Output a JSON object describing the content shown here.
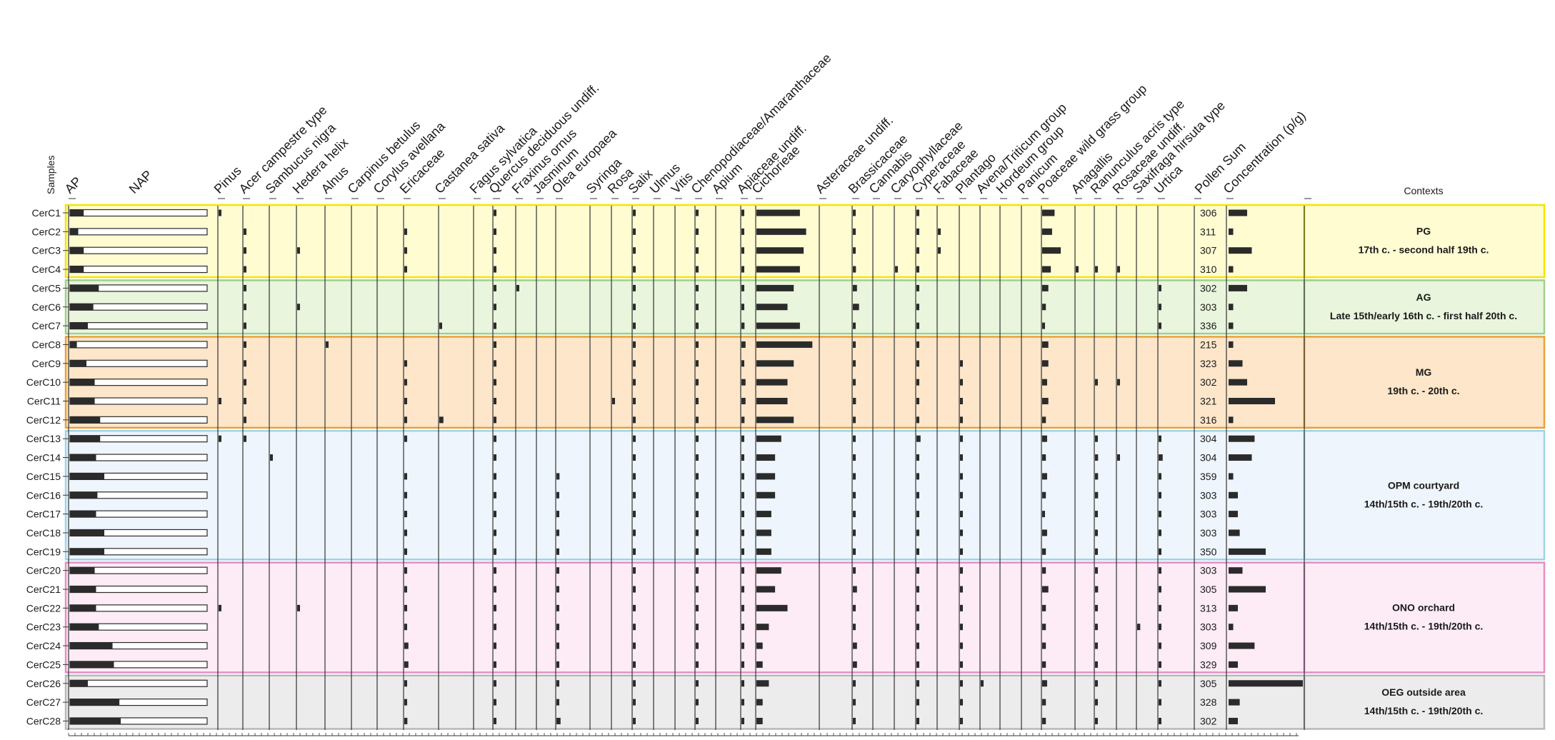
{
  "chart_data": {
    "type": "bar",
    "title": "",
    "samples_header": "Samples",
    "pollen_sum_header": "Pollen Sum",
    "concentration_header": "Concentration (p/g)",
    "contexts_header": "Contexts",
    "ap_label": "AP",
    "nap_label": "NAP",
    "samples": [
      "CerC1",
      "CerC2",
      "CerC3",
      "CerC4",
      "CerC5",
      "CerC6",
      "CerC7",
      "CerC8",
      "CerC9",
      "CerC10",
      "CerC11",
      "CerC12",
      "CerC13",
      "CerC14",
      "CerC15",
      "CerC16",
      "CerC17",
      "CerC18",
      "CerC19",
      "CerC20",
      "CerC21",
      "CerC22",
      "CerC23",
      "CerC24",
      "CerC25",
      "CerC26",
      "CerC27",
      "CerC28"
    ],
    "ap_percent": [
      10,
      6,
      10,
      10,
      21,
      17,
      13,
      5,
      12,
      18,
      18,
      22,
      22,
      19,
      25,
      20,
      19,
      25,
      25,
      18,
      19,
      19,
      21,
      31,
      32,
      13,
      36,
      37
    ],
    "pollen_sum": [
      306,
      311,
      307,
      310,
      302,
      303,
      336,
      215,
      323,
      302,
      321,
      316,
      304,
      304,
      359,
      303,
      303,
      303,
      350,
      303,
      305,
      313,
      303,
      309,
      329,
      305,
      328,
      302
    ],
    "concentration_rel": [
      0.2,
      0.05,
      0.25,
      0.05,
      0.2,
      0.05,
      0.05,
      0.05,
      0.15,
      0.2,
      0.5,
      0.05,
      0.28,
      0.25,
      0.05,
      0.1,
      0.1,
      0.12,
      0.4,
      0.15,
      0.4,
      0.1,
      0.05,
      0.28,
      0.1,
      0.8,
      0.12,
      0.1
    ],
    "taxa": [
      "Pinus",
      "Acer campestre type",
      "Sambucus nigra",
      "Hedera helix",
      "Alnus",
      "Carpinus betulus",
      "Corylus avellana",
      "Ericaceae",
      "Castanea sativa",
      "Fagus sylvatica",
      "Quercus deciduous undiff.",
      "Fraxinus ornus",
      "Jasminum",
      "Olea europaea",
      "Syringa",
      "Rosa",
      "Salix",
      "Ulmus",
      "Vitis",
      "Chenopodiaceae/Amaranthaceae",
      "Apium",
      "Apiaceae undiff.",
      "Cichorieae",
      "Asteraceae undiff.",
      "Brassicaceae",
      "Cannabis",
      "Caryophyllaceae",
      "Cyperaceae",
      "Fabaceae",
      "Plantago",
      "Avena/Triticum group",
      "Hordeum group",
      "Panicum",
      "Poaceae wild grass group",
      "Anagallis",
      "Ranunculus acris type",
      "Rosaceae undiff.",
      "Saxifraga hirsuta type",
      "Urtica"
    ],
    "taxa_percent": [
      [
        0.5,
        0,
        0,
        0,
        0,
        0,
        0,
        0,
        0,
        0,
        0.5,
        0,
        0,
        0,
        0,
        0,
        0.5,
        0,
        0,
        0.5,
        0,
        0.5,
        35,
        0,
        1,
        0,
        0,
        1,
        0,
        0,
        0,
        0,
        0,
        10,
        0,
        0,
        0,
        0,
        0
      ],
      [
        0,
        0.5,
        0,
        0,
        0,
        0,
        0,
        0.5,
        0,
        0,
        0.5,
        0,
        0,
        0,
        0,
        0,
        0.5,
        0,
        0,
        0.5,
        0,
        0.5,
        40,
        0,
        1,
        0,
        0,
        1,
        0.5,
        0,
        0,
        0,
        0,
        8,
        0,
        0,
        0,
        0,
        0
      ],
      [
        0,
        0.5,
        0,
        1,
        0,
        0,
        0,
        0.5,
        0,
        0,
        0.5,
        0,
        0,
        0,
        0,
        0,
        0.5,
        0,
        0,
        0.5,
        0,
        0.5,
        38,
        0,
        0.5,
        0,
        0,
        1,
        0.5,
        0,
        0,
        0,
        0,
        15,
        0,
        0,
        0,
        0,
        0
      ],
      [
        0,
        0.5,
        0,
        0,
        0,
        0,
        0,
        0.5,
        0,
        0,
        0.5,
        0,
        0,
        0,
        0,
        0,
        0.5,
        0,
        0,
        0.5,
        0,
        0.5,
        35,
        0,
        1.5,
        0,
        0.5,
        1,
        0,
        0,
        0,
        0,
        0,
        7,
        0.5,
        0.5,
        0.5,
        0,
        0
      ],
      [
        0,
        0.5,
        0,
        0,
        0,
        0,
        0,
        0,
        0,
        0,
        1,
        0.5,
        0,
        0,
        0,
        0,
        0.5,
        0,
        0,
        0.5,
        0,
        1,
        30,
        0,
        2,
        0,
        0,
        1,
        0,
        0,
        0,
        0,
        0,
        5,
        0,
        0,
        0,
        0,
        0.5
      ],
      [
        0,
        0.5,
        0,
        1,
        0,
        0,
        0,
        0,
        0,
        0,
        0.5,
        0,
        0,
        0,
        0,
        0,
        0.5,
        0,
        0,
        0.5,
        0,
        0.5,
        25,
        0,
        3,
        0,
        0,
        1,
        0,
        0,
        0,
        0,
        0,
        3,
        0,
        0,
        0,
        0,
        1
      ],
      [
        0,
        0.5,
        0,
        0,
        0,
        0,
        0,
        0,
        0.5,
        0,
        0.5,
        0,
        0,
        0,
        0,
        0,
        0.5,
        0,
        0,
        0.5,
        0,
        1.5,
        35,
        0,
        0.5,
        0,
        0,
        1,
        0,
        0,
        0,
        0,
        0,
        2,
        0,
        0,
        0,
        0,
        0.5
      ],
      [
        0,
        0.5,
        0,
        0,
        0.5,
        0,
        0,
        0,
        0,
        0,
        0.5,
        0,
        0,
        0,
        0,
        0,
        0.5,
        0,
        0,
        0.5,
        0,
        2,
        45,
        0,
        1,
        0,
        0,
        1,
        0,
        0,
        0,
        0,
        0,
        5,
        0,
        0,
        0,
        0,
        0
      ],
      [
        0,
        0.5,
        0,
        0,
        0,
        0,
        0,
        0.5,
        0,
        0,
        0.5,
        0,
        0,
        0,
        0,
        0,
        0.5,
        0,
        0,
        0.5,
        0,
        1,
        30,
        0,
        1,
        0,
        0,
        1,
        0,
        1,
        0,
        0,
        0,
        5,
        0,
        0,
        0,
        0,
        0
      ],
      [
        0,
        0.5,
        0,
        0,
        0,
        0,
        0,
        0.5,
        0,
        0,
        0.5,
        0,
        0,
        0,
        0,
        0,
        0.5,
        0,
        0,
        0.5,
        0,
        2,
        25,
        0,
        1,
        0,
        0,
        1,
        0,
        0.5,
        0,
        0,
        0,
        4,
        0,
        0.5,
        0.5,
        0,
        0
      ],
      [
        1,
        0.5,
        0,
        0,
        0,
        0,
        0,
        0.5,
        0,
        0,
        0.5,
        0,
        0,
        0,
        0,
        0.5,
        0.5,
        0,
        0,
        0.5,
        0,
        2,
        25,
        0,
        1.5,
        0,
        0,
        1,
        0,
        1,
        0,
        0,
        0,
        5,
        0,
        0,
        0,
        0,
        0
      ],
      [
        0,
        0.5,
        0,
        0,
        0,
        0,
        0,
        0.5,
        2,
        0,
        0.5,
        0,
        0,
        0,
        0,
        0,
        0.5,
        0,
        0,
        0.5,
        0,
        1.5,
        30,
        0,
        1,
        0,
        0,
        1,
        0,
        0.5,
        0,
        0,
        0,
        3,
        0,
        0,
        0,
        0,
        0
      ],
      [
        0.5,
        0.5,
        0,
        0,
        0,
        0,
        0,
        0.5,
        0,
        0,
        0.5,
        0,
        0,
        0,
        0,
        0,
        0.5,
        0,
        0,
        0.5,
        0,
        1,
        20,
        0,
        1,
        0,
        0,
        2,
        0,
        0.5,
        0,
        0,
        0,
        4,
        0,
        0.5,
        0,
        0,
        1
      ],
      [
        0,
        0,
        0.5,
        0,
        0,
        0,
        0,
        0,
        0,
        0,
        0.5,
        0,
        0,
        0,
        0,
        0,
        0.5,
        0,
        0,
        0.5,
        0,
        0.5,
        15,
        0,
        1,
        0,
        0,
        1,
        0,
        0.5,
        0,
        0,
        0,
        3,
        0,
        1.5,
        0.5,
        0,
        2
      ],
      [
        0,
        0,
        0,
        0,
        0,
        0,
        0,
        1,
        0,
        0,
        0.5,
        0,
        0,
        1.5,
        0,
        0,
        0.5,
        0,
        0,
        0.5,
        0,
        0.5,
        15,
        0,
        1,
        0,
        0,
        1,
        0,
        0.5,
        0,
        0,
        0,
        4,
        0,
        1.5,
        0,
        0,
        0.5
      ],
      [
        0,
        0,
        0,
        0,
        0,
        0,
        0,
        0.5,
        0,
        0,
        0.5,
        0,
        0,
        0.5,
        0,
        0,
        0.5,
        0,
        0,
        0.5,
        0,
        0.5,
        15,
        0,
        1,
        0,
        0,
        1,
        0,
        0.5,
        0,
        0,
        0,
        3,
        0,
        1.5,
        0,
        0,
        0.5
      ],
      [
        0,
        0,
        0,
        0,
        0,
        0,
        0,
        0.5,
        0,
        0,
        0.5,
        0,
        0,
        0.5,
        0,
        0,
        0.5,
        0,
        0,
        0.5,
        0,
        0.5,
        12,
        0,
        1,
        0,
        0,
        1,
        0,
        0.5,
        0,
        0,
        0,
        2,
        0,
        1,
        0,
        0,
        0.5
      ],
      [
        0,
        0,
        0,
        0,
        0,
        0,
        0,
        0.5,
        0,
        0,
        0.5,
        0,
        0,
        0.5,
        0,
        0,
        0.5,
        0,
        0,
        0.5,
        0,
        0.5,
        12,
        0,
        1,
        0,
        0,
        1,
        0,
        0.5,
        0,
        0,
        0,
        4,
        0,
        1,
        0,
        0,
        0.5
      ],
      [
        0,
        0,
        0,
        0,
        0,
        0,
        0,
        0.5,
        0,
        0,
        0.5,
        0,
        0,
        0.5,
        0,
        0,
        0.5,
        0,
        0,
        0.5,
        0,
        0.5,
        12,
        0,
        1,
        0,
        0,
        1,
        0,
        0.5,
        0,
        0,
        0,
        3,
        0,
        1,
        0,
        0,
        0.5
      ],
      [
        0,
        0,
        0,
        0,
        0,
        0,
        0,
        0.5,
        0,
        0,
        0.5,
        0,
        0,
        0.5,
        0,
        0,
        0.5,
        0,
        0,
        0.5,
        0,
        0.5,
        20,
        0,
        1,
        0,
        0,
        1,
        0,
        1,
        0,
        0,
        0,
        3,
        0,
        1,
        0,
        0,
        0.5
      ],
      [
        0,
        0,
        0,
        0,
        0,
        0,
        0,
        0.5,
        0,
        0,
        0.5,
        0,
        0,
        0.5,
        0,
        0,
        1,
        0,
        0,
        0.5,
        0,
        0.5,
        15,
        0,
        2,
        0,
        0,
        1,
        0,
        0.5,
        0,
        0,
        0,
        5,
        0,
        1.5,
        0,
        0,
        0.5
      ],
      [
        1,
        0,
        0,
        0.5,
        0,
        0,
        0,
        0.5,
        0,
        0,
        0.5,
        0,
        0,
        0.5,
        0,
        0,
        0.5,
        0,
        0,
        0.5,
        0,
        0.5,
        25,
        0,
        1,
        0,
        0,
        1,
        0,
        0.5,
        0,
        0,
        0,
        3,
        0,
        1,
        0,
        0,
        0.5
      ],
      [
        0,
        0,
        0,
        0,
        0,
        0,
        0,
        0.5,
        0,
        0,
        0.5,
        0,
        0,
        0.5,
        0,
        0,
        0.5,
        0,
        0,
        0.5,
        0,
        0.5,
        10,
        0,
        1,
        0,
        0,
        1,
        0,
        0.5,
        0,
        0,
        0,
        3,
        0,
        1,
        0,
        1.5,
        0.5
      ],
      [
        0,
        0,
        0,
        0,
        0,
        0,
        0,
        2,
        0,
        0,
        0.5,
        0,
        0,
        0.5,
        0,
        0,
        0.5,
        0,
        0,
        0.5,
        0,
        0.5,
        5,
        0,
        2,
        0,
        0,
        1,
        0,
        0.5,
        0,
        0,
        0,
        3,
        0,
        1,
        0,
        0,
        0.5
      ],
      [
        0,
        0,
        0,
        0,
        0,
        0,
        0,
        2,
        0,
        0,
        0.5,
        0,
        0,
        0.5,
        0,
        0,
        0.5,
        0,
        0,
        0.5,
        0,
        0.5,
        5,
        0,
        2,
        0,
        0,
        1,
        0,
        0.5,
        0,
        0,
        0,
        3,
        0,
        1,
        0,
        0,
        0.5
      ],
      [
        0,
        0,
        0,
        0,
        0,
        0,
        0,
        0.5,
        0,
        0,
        0.5,
        0,
        0,
        0.5,
        0,
        0,
        0.5,
        0,
        0,
        0.5,
        0,
        0.5,
        10,
        0,
        1,
        0,
        0,
        1,
        0,
        0.5,
        0.5,
        0,
        0,
        4,
        0,
        0.5,
        0,
        0,
        0.5
      ],
      [
        0,
        0,
        0,
        0,
        0,
        0,
        0,
        0.5,
        0,
        0,
        0.5,
        0,
        0,
        0.5,
        0,
        0,
        0.5,
        0,
        0,
        0.5,
        0,
        0.5,
        5,
        0,
        1,
        0,
        0,
        1,
        0,
        0.5,
        0,
        0,
        0,
        3,
        0,
        0.5,
        0,
        0,
        0.5
      ],
      [
        0,
        0,
        0,
        0,
        0,
        0,
        0,
        1.5,
        0,
        0,
        0.5,
        0,
        0,
        2,
        0,
        0,
        0.5,
        0,
        0,
        0.5,
        0,
        0.5,
        5,
        0,
        1,
        0,
        0,
        1,
        0,
        0.5,
        0,
        0,
        0,
        3,
        0,
        0.5,
        0,
        0,
        0.5
      ]
    ],
    "contexts": [
      {
        "code": "PG",
        "period": "17th c. - second half 19th c.",
        "first": 0,
        "last": 3,
        "fill": "#fffcd2",
        "stroke": "#f2e600"
      },
      {
        "code": "AG",
        "period": "Late 15th/early 16th c. - first half 20th c.",
        "first": 4,
        "last": 6,
        "fill": "#e9f5dc",
        "stroke": "#9fcf8d"
      },
      {
        "code": "MG",
        "period": "19th c. - 20th c.",
        "first": 7,
        "last": 11,
        "fill": "#fde6c9",
        "stroke": "#e7a23a"
      },
      {
        "code": "OPM courtyard",
        "period": "14th/15th c. - 19th/20th c.",
        "first": 12,
        "last": 18,
        "fill": "#eef5fd",
        "stroke": "#9ed4e6"
      },
      {
        "code": "ONO orchard",
        "period": "14th/15th c. - 19th/20th c.",
        "first": 19,
        "last": 24,
        "fill": "#fdebf6",
        "stroke": "#e48fc5"
      },
      {
        "code": "OEG outside area",
        "period": "14th/15th c. - 19th/20th c.",
        "first": 25,
        "last": 27,
        "fill": "#ececec",
        "stroke": "#b8b8b8"
      }
    ],
    "colors": {
      "bar": "#2b2b2b",
      "axis": "#333333",
      "separator": "#333333",
      "text": "#1a1a1a"
    }
  }
}
